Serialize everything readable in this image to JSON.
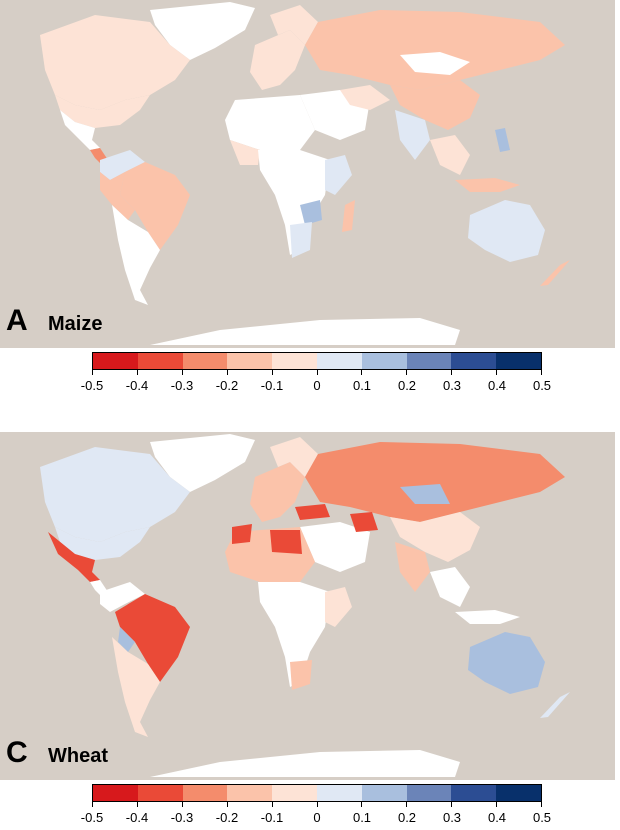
{
  "panels": [
    {
      "letter": "A",
      "crop": "Maize"
    },
    {
      "letter": "C",
      "crop": "Wheat"
    }
  ],
  "legend": {
    "ticks": [
      "-0.5",
      "-0.4",
      "-0.3",
      "-0.2",
      "-0.1",
      "0",
      "0.1",
      "0.2",
      "0.3",
      "0.4",
      "0.5"
    ],
    "colors": [
      "#d7191c",
      "#ea4a37",
      "#f48c6c",
      "#fbc3aa",
      "#fde3d6",
      "#e0e8f4",
      "#a9bfde",
      "#6b84b8",
      "#2c4d93",
      "#08306b"
    ]
  },
  "colors": {
    "ocean": "#d6cec6",
    "no_data": "#ffffff"
  }
}
